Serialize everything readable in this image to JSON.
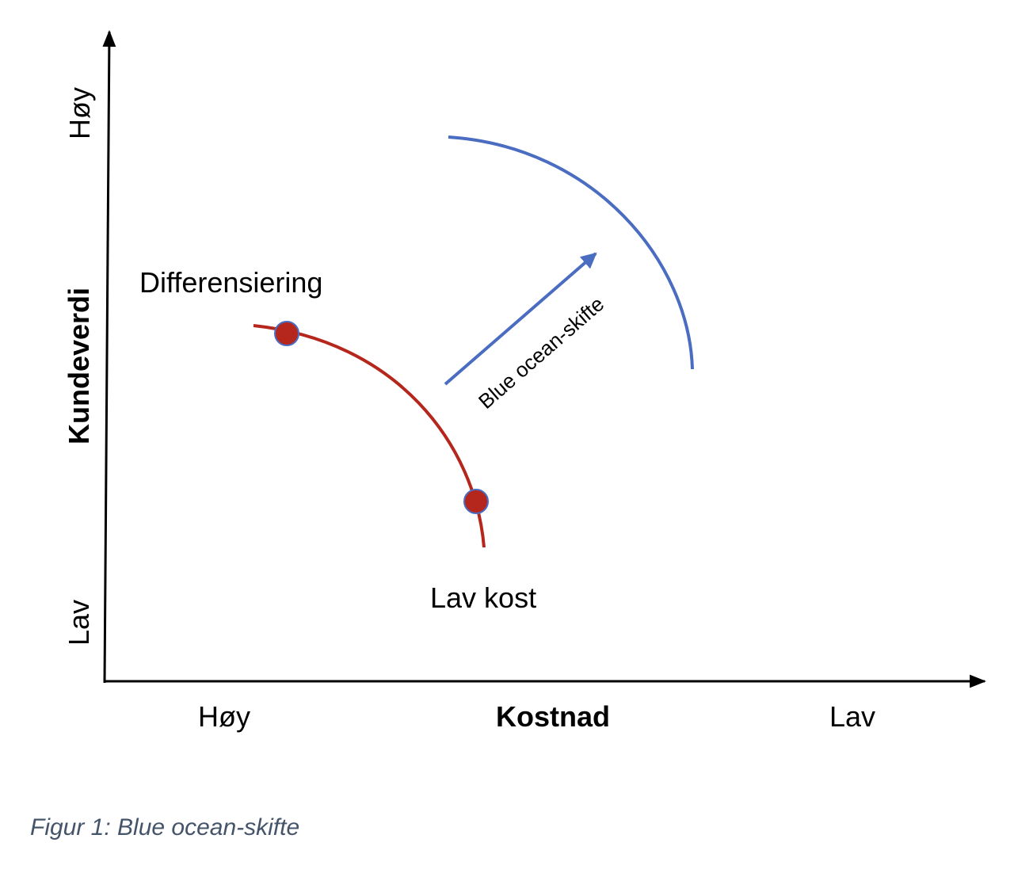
{
  "figure": {
    "y_axis": {
      "title": "Kundeverdi",
      "high_label": "Høy",
      "low_label": "Lav"
    },
    "x_axis": {
      "title": "Kostnad",
      "left_label": "Høy",
      "right_label": "Lav"
    },
    "curves": {
      "current": {
        "color": "#b5261c"
      },
      "shifted": {
        "color": "#4a6cc1"
      }
    },
    "points": {
      "differentiation": {
        "label": "Differensiering",
        "color": "#b5261c",
        "outline": "#4a6cc1"
      },
      "low_cost": {
        "label": "Lav kost",
        "color": "#b5261c",
        "outline": "#4a6cc1"
      }
    },
    "shift_arrow": {
      "label": "Blue ocean-skifte",
      "color": "#4a6cc1"
    },
    "caption": "Figur 1: Blue ocean-skifte"
  }
}
